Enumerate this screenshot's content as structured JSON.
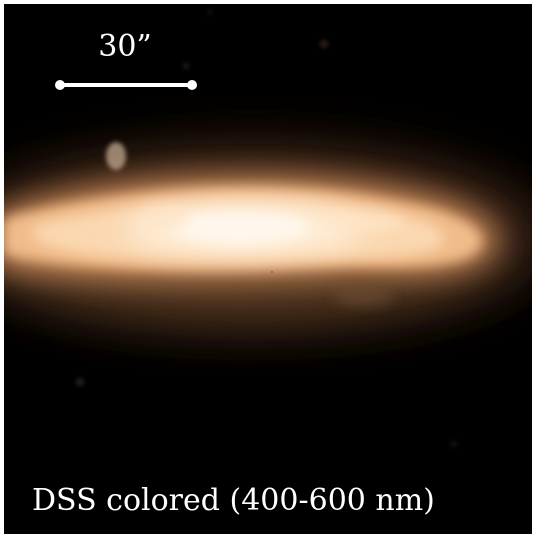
{
  "image": {
    "subject": "",
    "scale_bar": {
      "label": "30”"
    },
    "caption": "DSS colored (400-600 nm)"
  },
  "colors": {
    "background": "#000000",
    "galaxy_core": "#fff4e6",
    "galaxy_body": "#f7c48c",
    "galaxy_halo": "#6a4a2c",
    "scale_bar": "#ffffff",
    "text": "#ffffff"
  }
}
